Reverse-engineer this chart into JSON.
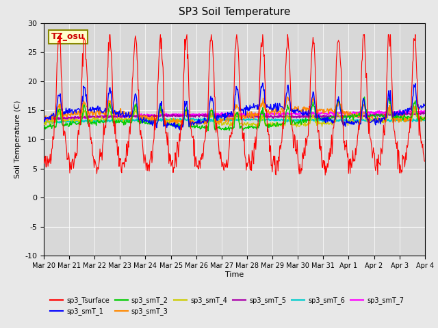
{
  "title": "SP3 Soil Temperature",
  "ylabel": "Soil Temperature (C)",
  "xlabel": "Time",
  "tz_label": "TZ_osu",
  "ylim": [
    -10,
    30
  ],
  "background_color": "#e8e8e8",
  "plot_bg_color": "#d8d8d8",
  "series_colors": {
    "sp3_Tsurface": "#ff0000",
    "sp3_smT_1": "#0000ff",
    "sp3_smT_2": "#00cc00",
    "sp3_smT_3": "#ff8800",
    "sp3_smT_4": "#cccc00",
    "sp3_smT_5": "#aa00aa",
    "sp3_smT_6": "#00cccc",
    "sp3_smT_7": "#ff00ff"
  },
  "x_tick_labels": [
    "Mar 20",
    "Mar 21",
    "Mar 22",
    "Mar 23",
    "Mar 24",
    "Mar 25",
    "Mar 26",
    "Mar 27",
    "Mar 28",
    "Mar 29",
    "Mar 30",
    "Mar 31",
    "Apr 1",
    "Apr 2",
    "Apr 3",
    "Apr 4"
  ],
  "n_days": 15,
  "points_per_day": 48
}
